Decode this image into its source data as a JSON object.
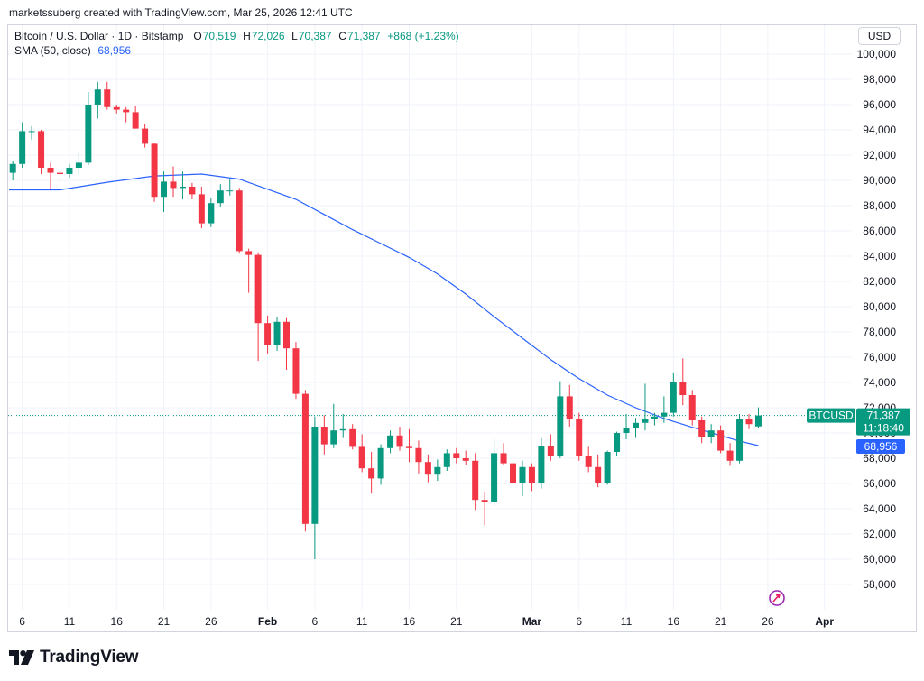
{
  "header": {
    "attribution": "marketssuberg created with TradingView.com, Mar 25, 2026 12:41 UTC"
  },
  "legend": {
    "symbol": "Bitcoin / U.S. Dollar · 1D · Bitstamp",
    "o_label": "O",
    "o_value": "70,519",
    "h_label": "H",
    "h_value": "72,026",
    "l_label": "L",
    "l_value": "70,387",
    "c_label": "C",
    "c_value": "71,387",
    "change": "+868 (+1.23%)",
    "sma_label": "SMA (50, close)",
    "sma_value": "68,956"
  },
  "currency": "USD",
  "price_tag": {
    "symbol": "BTCUSD",
    "price": "71,387",
    "countdown": "11:18:40",
    "sma_price": "68,956"
  },
  "footer": {
    "brand": "TradingView"
  },
  "colors": {
    "up": "#089981",
    "down": "#f23645",
    "sma": "#2962ff",
    "grid": "#f0f3fa",
    "axis_text": "#131722"
  },
  "chart_data": {
    "type": "candlestick",
    "title": "Bitcoin / U.S. Dollar · 1D · Bitstamp",
    "ylim": [
      56500,
      101000
    ],
    "y_ticks": [
      "100,000",
      "98,000",
      "96,000",
      "94,000",
      "92,000",
      "90,000",
      "88,000",
      "86,000",
      "84,000",
      "82,000",
      "80,000",
      "78,000",
      "76,000",
      "74,000",
      "72,000",
      "70,000",
      "68,000",
      "66,000",
      "64,000",
      "62,000",
      "60,000",
      "58,000"
    ],
    "x_ticks": [
      "6",
      "11",
      "16",
      "21",
      "26",
      "Feb",
      "6",
      "11",
      "16",
      "21",
      "Mar",
      "6",
      "11",
      "16",
      "21",
      "26",
      "Apr"
    ],
    "x_tick_days": [
      6,
      11,
      16,
      21,
      26,
      32,
      37,
      42,
      47,
      52,
      60,
      65,
      70,
      75,
      80,
      85,
      91
    ],
    "x_day_range": [
      4.6,
      93.9
    ],
    "last_price": 71387,
    "candles": [
      {
        "d": 5,
        "o": 90600,
        "h": 91500,
        "l": 90000,
        "c": 91300
      },
      {
        "d": 6,
        "o": 91300,
        "h": 94600,
        "l": 91000,
        "c": 93900
      },
      {
        "d": 7,
        "o": 93900,
        "h": 94300,
        "l": 93200,
        "c": 93900
      },
      {
        "d": 8,
        "o": 93900,
        "h": 94000,
        "l": 90500,
        "c": 91000
      },
      {
        "d": 9,
        "o": 91000,
        "h": 91400,
        "l": 89300,
        "c": 90600
      },
      {
        "d": 10,
        "o": 90600,
        "h": 91300,
        "l": 89800,
        "c": 90500
      },
      {
        "d": 11,
        "o": 90500,
        "h": 91300,
        "l": 90200,
        "c": 91000
      },
      {
        "d": 12,
        "o": 91000,
        "h": 92200,
        "l": 90400,
        "c": 91400
      },
      {
        "d": 13,
        "o": 91400,
        "h": 97000,
        "l": 91200,
        "c": 96000
      },
      {
        "d": 14,
        "o": 96000,
        "h": 97800,
        "l": 94900,
        "c": 97200
      },
      {
        "d": 15,
        "o": 97200,
        "h": 97800,
        "l": 95600,
        "c": 95800
      },
      {
        "d": 16,
        "o": 95800,
        "h": 96000,
        "l": 95300,
        "c": 95600
      },
      {
        "d": 17,
        "o": 95600,
        "h": 95800,
        "l": 94600,
        "c": 95400
      },
      {
        "d": 18,
        "o": 95400,
        "h": 95900,
        "l": 94100,
        "c": 94100
      },
      {
        "d": 19,
        "o": 94100,
        "h": 94500,
        "l": 92600,
        "c": 92900
      },
      {
        "d": 20,
        "o": 92900,
        "h": 93000,
        "l": 88300,
        "c": 88700
      },
      {
        "d": 21,
        "o": 88700,
        "h": 90700,
        "l": 87500,
        "c": 89900
      },
      {
        "d": 22,
        "o": 89900,
        "h": 91100,
        "l": 88700,
        "c": 89400
      },
      {
        "d": 23,
        "o": 89400,
        "h": 90700,
        "l": 88500,
        "c": 89500
      },
      {
        "d": 24,
        "o": 89500,
        "h": 89800,
        "l": 88500,
        "c": 88900
      },
      {
        "d": 25,
        "o": 88900,
        "h": 89500,
        "l": 86200,
        "c": 86600
      },
      {
        "d": 26,
        "o": 86600,
        "h": 88600,
        "l": 86300,
        "c": 88200
      },
      {
        "d": 27,
        "o": 88200,
        "h": 89700,
        "l": 87900,
        "c": 89200
      },
      {
        "d": 28,
        "o": 89200,
        "h": 90100,
        "l": 88800,
        "c": 89200
      },
      {
        "d": 29,
        "o": 89200,
        "h": 89400,
        "l": 84200,
        "c": 84400
      },
      {
        "d": 30,
        "o": 84400,
        "h": 84600,
        "l": 81100,
        "c": 84100
      },
      {
        "d": 31,
        "o": 84100,
        "h": 84300,
        "l": 75700,
        "c": 78700
      },
      {
        "d": 32,
        "o": 78700,
        "h": 79300,
        "l": 76300,
        "c": 77000
      },
      {
        "d": 33,
        "o": 77000,
        "h": 79200,
        "l": 76500,
        "c": 78800
      },
      {
        "d": 34,
        "o": 78800,
        "h": 79100,
        "l": 75000,
        "c": 76700
      },
      {
        "d": 35,
        "o": 76700,
        "h": 77200,
        "l": 72700,
        "c": 73100
      },
      {
        "d": 36,
        "o": 73100,
        "h": 73400,
        "l": 62200,
        "c": 62800
      },
      {
        "d": 37,
        "o": 62800,
        "h": 71300,
        "l": 60000,
        "c": 70500
      },
      {
        "d": 38,
        "o": 70500,
        "h": 71400,
        "l": 68300,
        "c": 69100
      },
      {
        "d": 39,
        "o": 69100,
        "h": 72300,
        "l": 68800,
        "c": 70200
      },
      {
        "d": 40,
        "o": 70200,
        "h": 71500,
        "l": 69600,
        "c": 70300
      },
      {
        "d": 41,
        "o": 70300,
        "h": 70700,
        "l": 68700,
        "c": 68900
      },
      {
        "d": 42,
        "o": 68900,
        "h": 69900,
        "l": 66900,
        "c": 67200
      },
      {
        "d": 43,
        "o": 67200,
        "h": 68500,
        "l": 65200,
        "c": 66400
      },
      {
        "d": 44,
        "o": 66400,
        "h": 69100,
        "l": 65900,
        "c": 68800
      },
      {
        "d": 45,
        "o": 68800,
        "h": 70200,
        "l": 68400,
        "c": 69800
      },
      {
        "d": 46,
        "o": 69800,
        "h": 70500,
        "l": 68600,
        "c": 68900
      },
      {
        "d": 47,
        "o": 68900,
        "h": 70300,
        "l": 67700,
        "c": 68800
      },
      {
        "d": 48,
        "o": 68800,
        "h": 69400,
        "l": 66800,
        "c": 67700
      },
      {
        "d": 49,
        "o": 67700,
        "h": 68300,
        "l": 66100,
        "c": 66700
      },
      {
        "d": 50,
        "o": 66700,
        "h": 67900,
        "l": 66200,
        "c": 67300
      },
      {
        "d": 51,
        "o": 67300,
        "h": 68700,
        "l": 67000,
        "c": 68400
      },
      {
        "d": 52,
        "o": 68400,
        "h": 68800,
        "l": 67600,
        "c": 68000
      },
      {
        "d": 53,
        "o": 68000,
        "h": 68600,
        "l": 67500,
        "c": 67800
      },
      {
        "d": 54,
        "o": 67800,
        "h": 68400,
        "l": 63900,
        "c": 64700
      },
      {
        "d": 55,
        "o": 64700,
        "h": 65300,
        "l": 62700,
        "c": 64500
      },
      {
        "d": 56,
        "o": 64500,
        "h": 69500,
        "l": 64200,
        "c": 68400
      },
      {
        "d": 57,
        "o": 68400,
        "h": 69200,
        "l": 67500,
        "c": 67600
      },
      {
        "d": 58,
        "o": 67600,
        "h": 68200,
        "l": 62900,
        "c": 66000
      },
      {
        "d": 59,
        "o": 66000,
        "h": 67800,
        "l": 65000,
        "c": 67300
      },
      {
        "d": 60,
        "o": 67300,
        "h": 67600,
        "l": 65400,
        "c": 66000
      },
      {
        "d": 61,
        "o": 66000,
        "h": 69600,
        "l": 65600,
        "c": 69000
      },
      {
        "d": 62,
        "o": 69000,
        "h": 69900,
        "l": 67800,
        "c": 68200
      },
      {
        "d": 63,
        "o": 68200,
        "h": 74100,
        "l": 68000,
        "c": 72900
      },
      {
        "d": 64,
        "o": 72900,
        "h": 73800,
        "l": 70500,
        "c": 71100
      },
      {
        "d": 65,
        "o": 71100,
        "h": 71600,
        "l": 67800,
        "c": 68200
      },
      {
        "d": 66,
        "o": 68200,
        "h": 68900,
        "l": 66900,
        "c": 67300
      },
      {
        "d": 67,
        "o": 67300,
        "h": 68300,
        "l": 65700,
        "c": 66000
      },
      {
        "d": 68,
        "o": 66000,
        "h": 68600,
        "l": 65900,
        "c": 68500
      },
      {
        "d": 69,
        "o": 68500,
        "h": 70100,
        "l": 68200,
        "c": 70000
      },
      {
        "d": 70,
        "o": 70000,
        "h": 71500,
        "l": 69500,
        "c": 70400
      },
      {
        "d": 71,
        "o": 70400,
        "h": 71200,
        "l": 69600,
        "c": 70800
      },
      {
        "d": 72,
        "o": 70800,
        "h": 73900,
        "l": 70200,
        "c": 71100
      },
      {
        "d": 73,
        "o": 71100,
        "h": 71600,
        "l": 70600,
        "c": 71300
      },
      {
        "d": 74,
        "o": 71300,
        "h": 72900,
        "l": 70800,
        "c": 71600
      },
      {
        "d": 75,
        "o": 71600,
        "h": 74800,
        "l": 71300,
        "c": 74000
      },
      {
        "d": 76,
        "o": 74000,
        "h": 75900,
        "l": 72200,
        "c": 73000
      },
      {
        "d": 77,
        "o": 73000,
        "h": 73400,
        "l": 70600,
        "c": 71000
      },
      {
        "d": 78,
        "o": 71000,
        "h": 71300,
        "l": 69200,
        "c": 69700
      },
      {
        "d": 79,
        "o": 69700,
        "h": 70700,
        "l": 69200,
        "c": 70200
      },
      {
        "d": 80,
        "o": 70200,
        "h": 70600,
        "l": 68400,
        "c": 68600
      },
      {
        "d": 81,
        "o": 68600,
        "h": 69200,
        "l": 67400,
        "c": 67800
      },
      {
        "d": 82,
        "o": 67800,
        "h": 71500,
        "l": 67600,
        "c": 71100
      },
      {
        "d": 83,
        "o": 71100,
        "h": 71500,
        "l": 70300,
        "c": 70700
      },
      {
        "d": 84,
        "o": 70519,
        "h": 72026,
        "l": 70387,
        "c": 71387
      }
    ],
    "sma": {
      "name": "SMA (50, close)",
      "points": [
        [
          4.6,
          89250
        ],
        [
          10,
          89250
        ],
        [
          15,
          89850
        ],
        [
          20,
          90350
        ],
        [
          25,
          90500
        ],
        [
          29,
          90100
        ],
        [
          32,
          89300
        ],
        [
          35,
          88500
        ],
        [
          38,
          87300
        ],
        [
          41,
          86100
        ],
        [
          44,
          85000
        ],
        [
          47,
          83900
        ],
        [
          50,
          82600
        ],
        [
          53,
          81000
        ],
        [
          56,
          79200
        ],
        [
          59,
          77500
        ],
        [
          62,
          75800
        ],
        [
          65,
          74300
        ],
        [
          68,
          73000
        ],
        [
          71,
          72000
        ],
        [
          74,
          71150
        ],
        [
          77,
          70450
        ],
        [
          80,
          69800
        ],
        [
          82,
          69350
        ],
        [
          84,
          69000
        ]
      ]
    }
  }
}
